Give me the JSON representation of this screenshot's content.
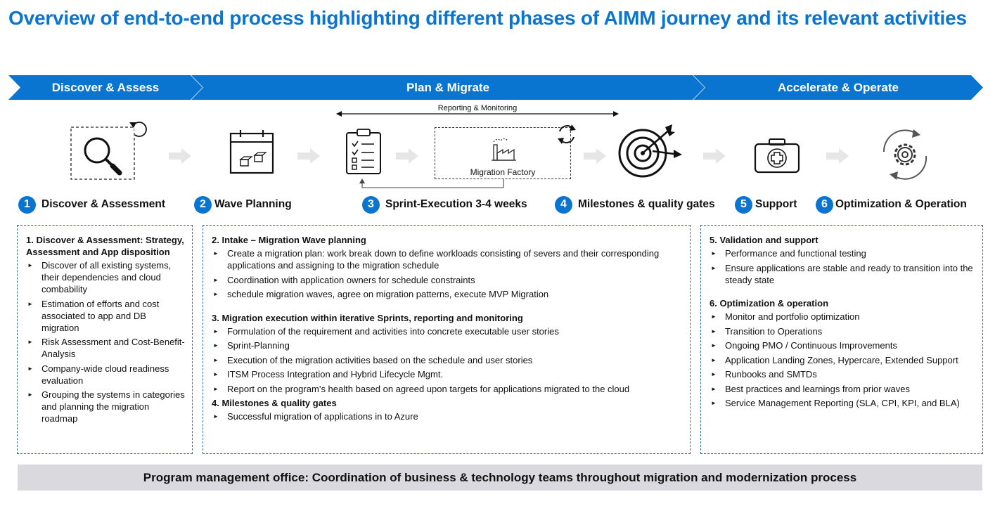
{
  "title": "Overview of end-to-end process highlighting different phases of AIMM journey and its relevant activities",
  "phases": [
    "Discover & Assess",
    "Plan & Migrate",
    "Accelerate & Operate"
  ],
  "colors": {
    "accent": "#0a74d1",
    "arrow_gray": "#e6e6e6",
    "pmo_bg": "#d9d9de"
  },
  "reporting_label": "Reporting & Monitoring",
  "factory_label": "Migration Factory",
  "icons": [
    "magnifier-icon",
    "refresh-icon",
    "calendar-boxes-icon",
    "clipboard-checklist-icon",
    "factory-icon",
    "target-arrow-icon",
    "first-aid-kit-icon",
    "gear-cycle-icon"
  ],
  "steps": [
    {
      "num": "1",
      "title": "Discover & Assessment"
    },
    {
      "num": "2",
      "title": "Wave Planning"
    },
    {
      "num": "3",
      "title": "Sprint-Execution 3-4 weeks"
    },
    {
      "num": "4",
      "title": "Milestones & quality gates"
    },
    {
      "num": "5",
      "title": "Support"
    },
    {
      "num": "6",
      "title": "Optimization & Operation"
    }
  ],
  "box1": {
    "heading": "1. Discover & Assessment: Strategy, Assessment and App disposition",
    "items": [
      "Discover of all existing systems, their dependencies and cloud combability",
      "Estimation of efforts and cost associated to app and DB migration",
      "Risk Assessment and Cost-Benefit-Analysis",
      "Company-wide cloud readiness evaluation",
      "Grouping the systems in categories and planning the migration roadmap"
    ]
  },
  "box2": {
    "sections": [
      {
        "heading": "2. Intake – Migration Wave planning",
        "items": [
          "Create a migration plan: work break down to define workloads consisting of severs and their corresponding applications and assigning to the migration schedule",
          "Coordination with application owners for schedule constraints",
          "schedule migration waves, agree on migration patterns, execute MVP Migration"
        ]
      },
      {
        "heading": "3. Migration execution within iterative Sprints, reporting and monitoring",
        "items": [
          "Formulation of the requirement and activities into concrete executable user stories",
          "Sprint-Planning",
          "Execution of the migration activities based on the schedule and user stories",
          "ITSM Process Integration and Hybrid Lifecycle Mgmt.",
          "Report on the program’s health based on agreed upon targets for applications migrated to the cloud"
        ]
      },
      {
        "heading": "4. Milestones & quality gates",
        "items": [
          "Successful migration of applications in to Azure"
        ]
      }
    ]
  },
  "box3": {
    "sections": [
      {
        "heading": "5. Validation and support",
        "items": [
          "Performance and functional testing",
          "Ensure applications are stable and ready to transition into the steady state"
        ]
      },
      {
        "heading": "6. Optimization & operation",
        "items": [
          "Monitor and portfolio optimization",
          "Transition to Operations",
          "Ongoing PMO / Continuous Improvements",
          "Application Landing Zones, Hypercare, Extended Support",
          "Runbooks and SMTDs",
          "Best practices and learnings from prior waves",
          "Service Management Reporting (SLA, CPI, KPI, and BLA)"
        ]
      }
    ]
  },
  "pmo": "Program management office: Coordination of business & technology teams throughout migration and modernization process"
}
